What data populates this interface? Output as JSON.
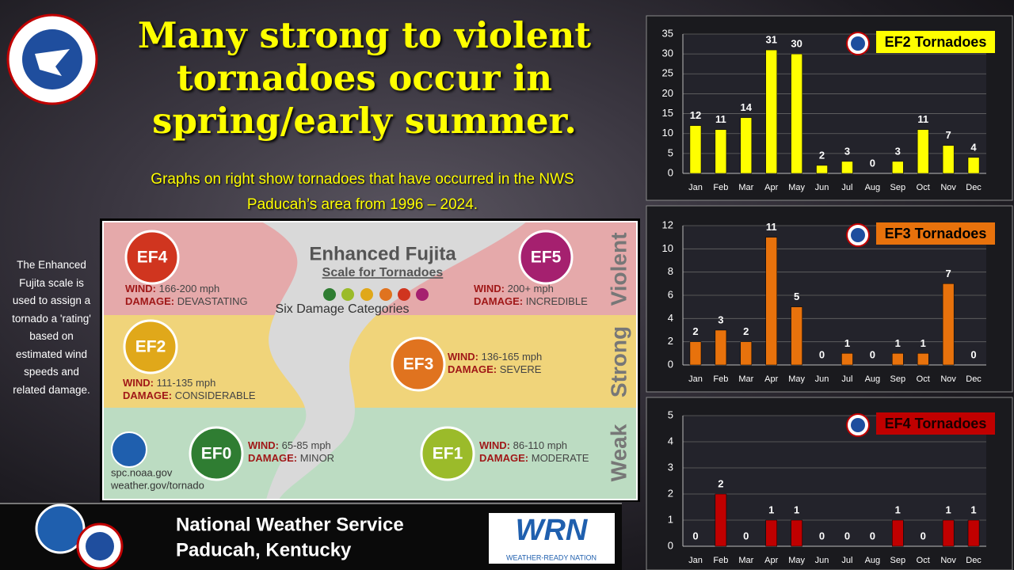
{
  "header": {
    "title": "Many strong to violent tornadoes occur in spring/early summer.",
    "subtitle": "Graphs on right show tornadoes that have occurred in the NWS Paducah’s area from 1996 – 2024."
  },
  "side_note": "The Enhanced Fujita scale is used to assign a tornado a 'rating' based on estimated wind speeds and related damage.",
  "scale": {
    "title": "Enhanced Fujita",
    "subtitle": "Scale for Tornadoes",
    "caption": "Six Damage Categories",
    "wind_label": "WIND:",
    "damage_label": "DAMAGE:",
    "groups": [
      "Violent",
      "Strong",
      "Weak"
    ],
    "categories": [
      {
        "name": "EF4",
        "wind": "166-200 mph",
        "damage": "DEVASTATING"
      },
      {
        "name": "EF5",
        "wind": "200+ mph",
        "damage": "INCREDIBLE"
      },
      {
        "name": "EF2",
        "wind": "111-135 mph",
        "damage": "CONSIDERABLE"
      },
      {
        "name": "EF3",
        "wind": "136-165 mph",
        "damage": "SEVERE"
      },
      {
        "name": "EF0",
        "wind": "65-85 mph",
        "damage": "MINOR"
      },
      {
        "name": "EF1",
        "wind": "86-110 mph",
        "damage": "MODERATE"
      }
    ],
    "links": [
      "spc.noaa.gov",
      "weather.gov/tornado"
    ]
  },
  "footer": {
    "lines": [
      "National Weather Service",
      "Paducah, Kentucky"
    ],
    "logo_text": "WRN",
    "logo_caption": "WEATHER-READY NATION"
  },
  "chart_data": [
    {
      "type": "bar",
      "title": "EF2 Tornadoes",
      "categories": [
        "Jan",
        "Feb",
        "Mar",
        "Apr",
        "May",
        "Jun",
        "Jul",
        "Aug",
        "Sep",
        "Oct",
        "Nov",
        "Dec"
      ],
      "values": [
        12,
        11,
        14,
        31,
        30,
        2,
        3,
        0,
        3,
        11,
        7,
        4
      ],
      "color": "#ffff00",
      "title_text_color": "#000000",
      "ylim": [
        0,
        35
      ],
      "yticks": [
        0,
        5,
        10,
        15,
        20,
        25,
        30,
        35
      ],
      "grid": true
    },
    {
      "type": "bar",
      "title": "EF3 Tornadoes",
      "categories": [
        "Jan",
        "Feb",
        "Mar",
        "Apr",
        "May",
        "Jun",
        "Jul",
        "Aug",
        "Sep",
        "Oct",
        "Nov",
        "Dec"
      ],
      "values": [
        2,
        3,
        2,
        11,
        5,
        0,
        1,
        0,
        1,
        1,
        7,
        0
      ],
      "color": "#e8720c",
      "title_text_color": "#000000",
      "ylim": [
        0,
        12
      ],
      "yticks": [
        0,
        2,
        4,
        6,
        8,
        10,
        12
      ],
      "grid": true
    },
    {
      "type": "bar",
      "title": "EF4 Tornadoes",
      "categories": [
        "Jan",
        "Feb",
        "Mar",
        "Apr",
        "May",
        "Jun",
        "Jul",
        "Aug",
        "Sep",
        "Oct",
        "Nov",
        "Dec"
      ],
      "values": [
        0,
        2,
        0,
        1,
        1,
        0,
        0,
        0,
        1,
        0,
        1,
        1
      ],
      "color": "#c00000",
      "title_text_color": "#1a0000",
      "ylim": [
        0,
        5
      ],
      "yticks": [
        0,
        1,
        2,
        3,
        4,
        5
      ],
      "grid": true
    }
  ]
}
